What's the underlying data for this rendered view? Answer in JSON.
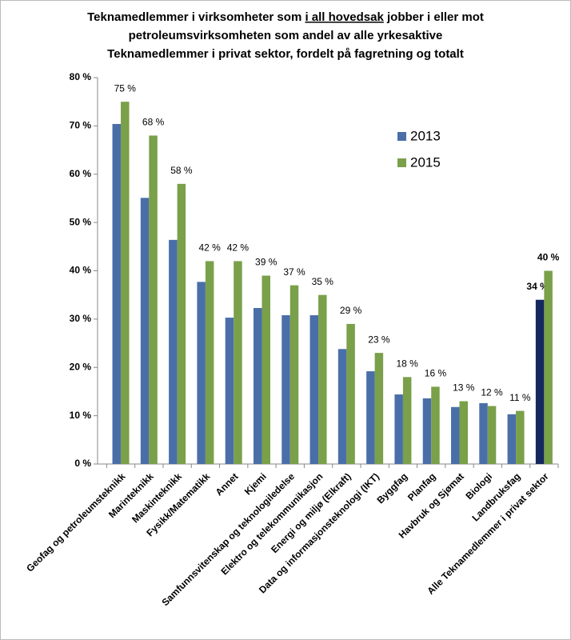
{
  "chart_data": {
    "type": "bar",
    "title": [
      [
        "Teknamedlemmer i virksomheter som ",
        "i all hovedsak",
        " jobber i eller mot"
      ],
      [
        "petroleumsvirksomheten som andel av alle yrkesaktive"
      ],
      [
        "Teknamedlemmer i privat sektor, fordelt på fagretning og totalt"
      ]
    ],
    "categories": [
      "Geofag og petroleumsteknikk",
      "Marinteknikk",
      "Maskinteknikk",
      "Fysikk/Matematikk",
      "Annet",
      "Kjemi",
      "Samfunnsvitenskap og teknologiledelse",
      "Elektro og telekommunikasjon",
      "Energi og miljø (Elkraft)",
      "Data og informasjonsteknologi (IKT)",
      "Byggfag",
      "Planfag",
      "Havbruk og Sjømat",
      "Biologi",
      "Landbruksfag",
      "Alle Teknamedlemmer i privat sektor"
    ],
    "series": [
      {
        "name": "2013",
        "color": "#4a6fa8",
        "colors": [
          "#4a6fa8",
          "#4a6fa8",
          "#4a6fa8",
          "#4a6fa8",
          "#4a6fa8",
          "#4a6fa8",
          "#4a6fa8",
          "#4a6fa8",
          "#4a6fa8",
          "#4a6fa8",
          "#4a6fa8",
          "#4a6fa8",
          "#4a6fa8",
          "#4a6fa8",
          "#4a6fa8",
          "#14285e"
        ],
        "values": [
          70.4,
          55.1,
          46.4,
          37.7,
          30.3,
          32.3,
          30.8,
          30.8,
          23.8,
          19.2,
          14.4,
          13.6,
          11.8,
          12.6,
          10.3,
          34
        ],
        "value_labels": [
          null,
          null,
          null,
          null,
          null,
          null,
          null,
          null,
          null,
          null,
          null,
          null,
          null,
          null,
          null,
          "34 %"
        ]
      },
      {
        "name": "2015",
        "color": "#7aa04a",
        "values": [
          75,
          68,
          58,
          42,
          42,
          39,
          37,
          35,
          29,
          23,
          18,
          16,
          13,
          12,
          11,
          40
        ],
        "value_labels": [
          "75 %",
          "68 %",
          "58 %",
          "42 %",
          "42 %",
          "39 %",
          "37 %",
          "35 %",
          "29 %",
          "23 %",
          "18 %",
          "16 %",
          "13 %",
          "12 %",
          "11 %",
          "40 %"
        ]
      }
    ],
    "ylim": [
      0,
      80
    ],
    "yticks": [
      {
        "value": 0,
        "label": "0 %"
      },
      {
        "value": 10,
        "label": "10 %"
      },
      {
        "value": 20,
        "label": "20 %"
      },
      {
        "value": 30,
        "label": "30 %"
      },
      {
        "value": 40,
        "label": "40 %"
      },
      {
        "value": 50,
        "label": "50 %"
      },
      {
        "value": 60,
        "label": "60 %"
      },
      {
        "value": 70,
        "label": "70 %"
      },
      {
        "value": 80,
        "label": "80 %"
      }
    ],
    "grid": false
  }
}
